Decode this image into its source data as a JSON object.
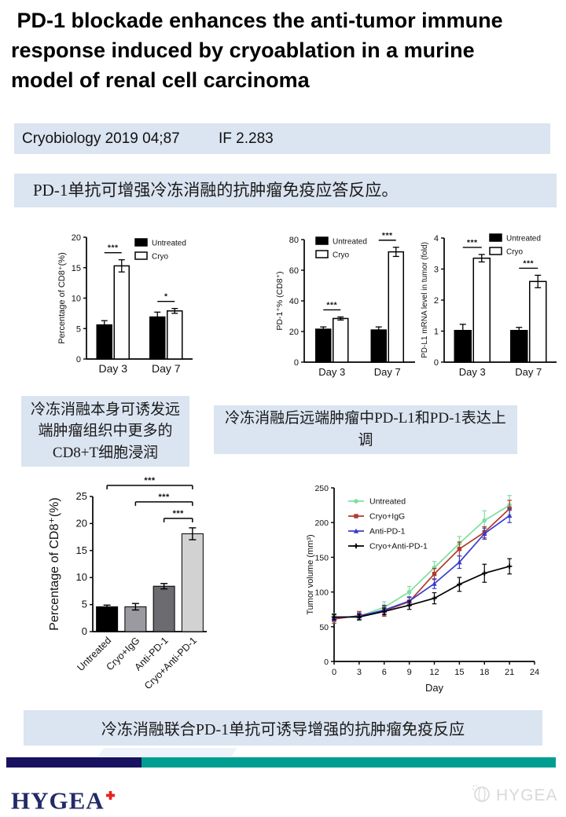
{
  "title": " PD-1 blockade enhances the anti-tumor immune response induced by cryoablation in a murine model of renal cell carcinoma",
  "journal_bar": {
    "journal": "Cryobiology 2019 04;87",
    "impact_factor": "IF 2.283"
  },
  "summary_banner": "PD-1单抗可增强冷冻消融的抗肿瘤免疫应答反应。",
  "captions": {
    "cd8_infiltration": "冷冻消融本身可诱发远端肿瘤组织中更多的CD8+T细胞浸润",
    "pdl1_upregulation": "冷冻消融后远端肿瘤中PD-L1和PD-1表达上调",
    "conclusion": "冷冻消融联合PD-1单抗可诱导增强的抗肿瘤免疫反应"
  },
  "footer": {
    "logo_text": "HYGEA",
    "watermark_text": "HYGEA"
  },
  "colors": {
    "banner_bg": "#dbe4f1",
    "footer_navy": "#181260",
    "footer_teal": "#009d92",
    "logo_navy": "#232a66",
    "logo_red": "#e8221c",
    "watermark_gray": "#d9d9d9"
  },
  "chart_data": [
    {
      "id": "cd8_percentage_by_day",
      "type": "bar",
      "categories": [
        "Day 3",
        "Day 7"
      ],
      "series": [
        {
          "name": "Untreated",
          "color": "#000000",
          "values": [
            5.6,
            6.9
          ],
          "errors": [
            0.7,
            0.8
          ]
        },
        {
          "name": "Cryo",
          "color": "#ffffff",
          "values": [
            15.3,
            7.9
          ],
          "errors": [
            1.0,
            0.4
          ]
        }
      ],
      "ylabel": "Percentage of CD8⁺(%)",
      "ylim": [
        0,
        20
      ],
      "yticks": [
        0,
        5,
        10,
        15,
        20
      ],
      "significance": [
        {
          "group": 0,
          "label": "***"
        },
        {
          "group": 1,
          "label": "*"
        }
      ],
      "legend_position": "top-right-inside",
      "grid": false
    },
    {
      "id": "pd1_percent_of_cd8",
      "type": "bar",
      "categories": [
        "Day 3",
        "Day 7"
      ],
      "series": [
        {
          "name": "Untreated",
          "color": "#000000",
          "values": [
            21.5,
            21.0
          ],
          "errors": [
            1.5,
            2.0
          ]
        },
        {
          "name": "Cryo",
          "color": "#ffffff",
          "values": [
            28.5,
            72.0
          ],
          "errors": [
            1.0,
            3.0
          ]
        }
      ],
      "ylabel": "PD-1⁺% (CD8⁺)",
      "ylim": [
        0,
        80
      ],
      "yticks": [
        0,
        20,
        40,
        60,
        80
      ],
      "significance": [
        {
          "group": 0,
          "label": "***"
        },
        {
          "group": 1,
          "label": "***"
        }
      ],
      "legend_position": "top-left-inside",
      "grid": false
    },
    {
      "id": "pdl1_mrna_level",
      "type": "bar",
      "categories": [
        "Day 3",
        "Day 7"
      ],
      "series": [
        {
          "name": "Untreated",
          "color": "#000000",
          "values": [
            1.02,
            1.02
          ],
          "errors": [
            0.2,
            0.1
          ]
        },
        {
          "name": "Cryo",
          "color": "#ffffff",
          "values": [
            3.35,
            2.6
          ],
          "errors": [
            0.12,
            0.2
          ]
        }
      ],
      "ylabel": "PD-L1 mRNA level in tumor (fold)",
      "ylim": [
        0,
        4
      ],
      "yticks": [
        0,
        1,
        2,
        3,
        4
      ],
      "significance": [
        {
          "group": 0,
          "label": "***"
        },
        {
          "group": 1,
          "label": "***"
        }
      ],
      "legend_position": "top-right-inside",
      "grid": false
    },
    {
      "id": "cd8_percentage_by_treatment",
      "type": "bar",
      "categories": [
        "Untreated",
        "Cryo+IgG",
        "Anti-PD-1",
        "Cryo+Anti-PD-1"
      ],
      "values": [
        4.6,
        4.6,
        8.4,
        18.1
      ],
      "errors": [
        0.3,
        0.6,
        0.5,
        1.1
      ],
      "bar_colors": [
        "#000000",
        "#9a9aa0",
        "#6b6b70",
        "#d2d2d2"
      ],
      "ylabel": "Percentage of CD8⁺(%)",
      "ylim": [
        0,
        25
      ],
      "yticks": [
        0,
        5,
        10,
        15,
        20,
        25
      ],
      "comparisons": [
        {
          "from": 0,
          "to": 3,
          "label": "***"
        },
        {
          "from": 1,
          "to": 3,
          "label": "***"
        },
        {
          "from": 2,
          "to": 3,
          "label": "***"
        }
      ],
      "xtick_rotation": -45,
      "grid": false
    },
    {
      "id": "tumor_volume_growth",
      "type": "line",
      "x": [
        0,
        3,
        6,
        9,
        12,
        15,
        18,
        21
      ],
      "series": [
        {
          "name": "Untreated",
          "color": "#7cdfa0",
          "marker": "circle",
          "values": [
            63,
            65,
            78,
            100,
            135,
            170,
            203,
            225
          ],
          "errors": [
            6,
            6,
            8,
            8,
            9,
            10,
            14,
            14
          ]
        },
        {
          "name": "Cryo+IgG",
          "color": "#b03a2e",
          "marker": "square",
          "values": [
            61,
            66,
            73,
            86,
            126,
            162,
            186,
            220
          ],
          "errors": [
            6,
            6,
            8,
            6,
            8,
            10,
            8,
            12
          ]
        },
        {
          "name": "Anti-PD-1",
          "color": "#3a3ccc",
          "marker": "triangle",
          "values": [
            63,
            65,
            74,
            87,
            112,
            143,
            184,
            210
          ],
          "errors": [
            5,
            5,
            6,
            6,
            7,
            9,
            8,
            10
          ]
        },
        {
          "name": "Cryo+Anti-PD-1",
          "color": "#000000",
          "marker": "plus",
          "values": [
            64,
            64,
            72,
            81,
            91,
            111,
            127,
            137
          ],
          "errors": [
            4,
            4,
            5,
            6,
            8,
            10,
            13,
            11
          ]
        }
      ],
      "xlabel": "Day",
      "ylabel": "Tumor volume (mm³)",
      "xlim": [
        0,
        24
      ],
      "xticks": [
        0,
        3,
        6,
        9,
        12,
        15,
        18,
        21,
        24
      ],
      "ylim": [
        0,
        250
      ],
      "yticks": [
        0,
        50,
        100,
        150,
        200,
        250
      ],
      "legend_position": "top-left-inside",
      "grid": false
    }
  ]
}
